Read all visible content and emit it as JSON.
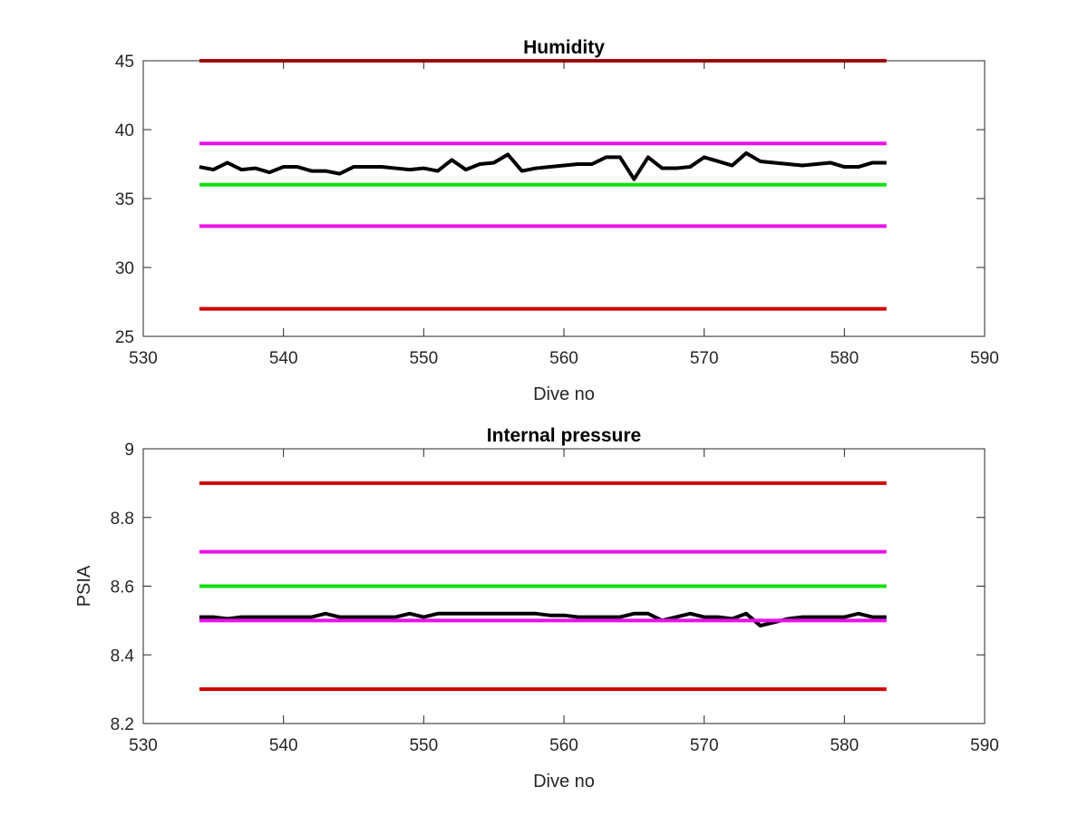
{
  "chart_data": [
    {
      "type": "line",
      "title": "Humidity",
      "xlabel": "Dive no",
      "ylabel": "",
      "xlim": [
        530,
        590
      ],
      "ylim": [
        25,
        45
      ],
      "xticks": [
        530,
        540,
        550,
        560,
        570,
        580,
        590
      ],
      "yticks": [
        25,
        30,
        35,
        40,
        45
      ],
      "grid": false,
      "series": [
        {
          "color": "#d00000",
          "x": [
            534,
            583
          ],
          "values": [
            45,
            45
          ]
        },
        {
          "color": "#ea10ea",
          "x": [
            534,
            583
          ],
          "values": [
            39,
            39
          ]
        },
        {
          "color": "#10e010",
          "x": [
            534,
            583
          ],
          "values": [
            36,
            36
          ]
        },
        {
          "color": "#ea10ea",
          "x": [
            534,
            583
          ],
          "values": [
            33,
            33
          ]
        },
        {
          "color": "#d00000",
          "x": [
            534,
            583
          ],
          "values": [
            27,
            27
          ]
        },
        {
          "color": "#000000",
          "x": [
            534,
            535,
            536,
            537,
            538,
            539,
            540,
            541,
            542,
            543,
            544,
            545,
            546,
            547,
            548,
            549,
            550,
            551,
            552,
            553,
            554,
            555,
            556,
            557,
            558,
            559,
            560,
            561,
            562,
            563,
            564,
            565,
            566,
            567,
            568,
            569,
            570,
            571,
            572,
            573,
            574,
            575,
            576,
            577,
            578,
            579,
            580,
            581,
            582,
            583
          ],
          "values": [
            37.3,
            37.1,
            37.6,
            37.1,
            37.2,
            36.9,
            37.3,
            37.3,
            37.0,
            37.0,
            36.8,
            37.3,
            37.3,
            37.3,
            37.2,
            37.1,
            37.2,
            37.0,
            37.8,
            37.1,
            37.5,
            37.6,
            38.2,
            37.0,
            37.2,
            37.3,
            37.4,
            37.5,
            37.5,
            38.0,
            38.0,
            36.4,
            38.0,
            37.2,
            37.2,
            37.3,
            38.0,
            37.7,
            37.4,
            38.3,
            37.7,
            37.6,
            37.5,
            37.4,
            37.5,
            37.6,
            37.3,
            37.3,
            37.6,
            37.6
          ]
        }
      ]
    },
    {
      "type": "line",
      "title": "Internal pressure",
      "xlabel": "Dive no",
      "ylabel": "PSIA",
      "xlim": [
        530,
        590
      ],
      "ylim": [
        8.2,
        9
      ],
      "xticks": [
        530,
        540,
        550,
        560,
        570,
        580,
        590
      ],
      "yticks": [
        8.2,
        8.4,
        8.6,
        8.8,
        9
      ],
      "grid": false,
      "series": [
        {
          "color": "#d00000",
          "x": [
            534,
            583
          ],
          "values": [
            8.9,
            8.9
          ]
        },
        {
          "color": "#ea10ea",
          "x": [
            534,
            583
          ],
          "values": [
            8.7,
            8.7
          ]
        },
        {
          "color": "#10e010",
          "x": [
            534,
            583
          ],
          "values": [
            8.6,
            8.6
          ]
        },
        {
          "color": "#000000",
          "x": [
            534,
            535,
            536,
            537,
            538,
            539,
            540,
            541,
            542,
            543,
            544,
            545,
            546,
            547,
            548,
            549,
            550,
            551,
            552,
            553,
            554,
            555,
            556,
            557,
            558,
            559,
            560,
            561,
            562,
            563,
            564,
            565,
            566,
            567,
            568,
            569,
            570,
            571,
            572,
            573,
            574,
            575,
            576,
            577,
            578,
            579,
            580,
            581,
            582,
            583
          ],
          "values": [
            8.51,
            8.51,
            8.505,
            8.51,
            8.51,
            8.51,
            8.51,
            8.51,
            8.51,
            8.52,
            8.51,
            8.51,
            8.51,
            8.51,
            8.51,
            8.52,
            8.51,
            8.52,
            8.52,
            8.52,
            8.52,
            8.52,
            8.52,
            8.52,
            8.52,
            8.515,
            8.515,
            8.51,
            8.51,
            8.51,
            8.51,
            8.52,
            8.52,
            8.5,
            8.51,
            8.52,
            8.51,
            8.51,
            8.505,
            8.52,
            8.485,
            8.495,
            8.505,
            8.51,
            8.51,
            8.51,
            8.51,
            8.52,
            8.51,
            8.51
          ]
        },
        {
          "color": "#ea10ea",
          "x": [
            534,
            583
          ],
          "values": [
            8.5,
            8.5
          ]
        },
        {
          "color": "#d00000",
          "x": [
            534,
            583
          ],
          "values": [
            8.3,
            8.3
          ]
        }
      ]
    }
  ]
}
